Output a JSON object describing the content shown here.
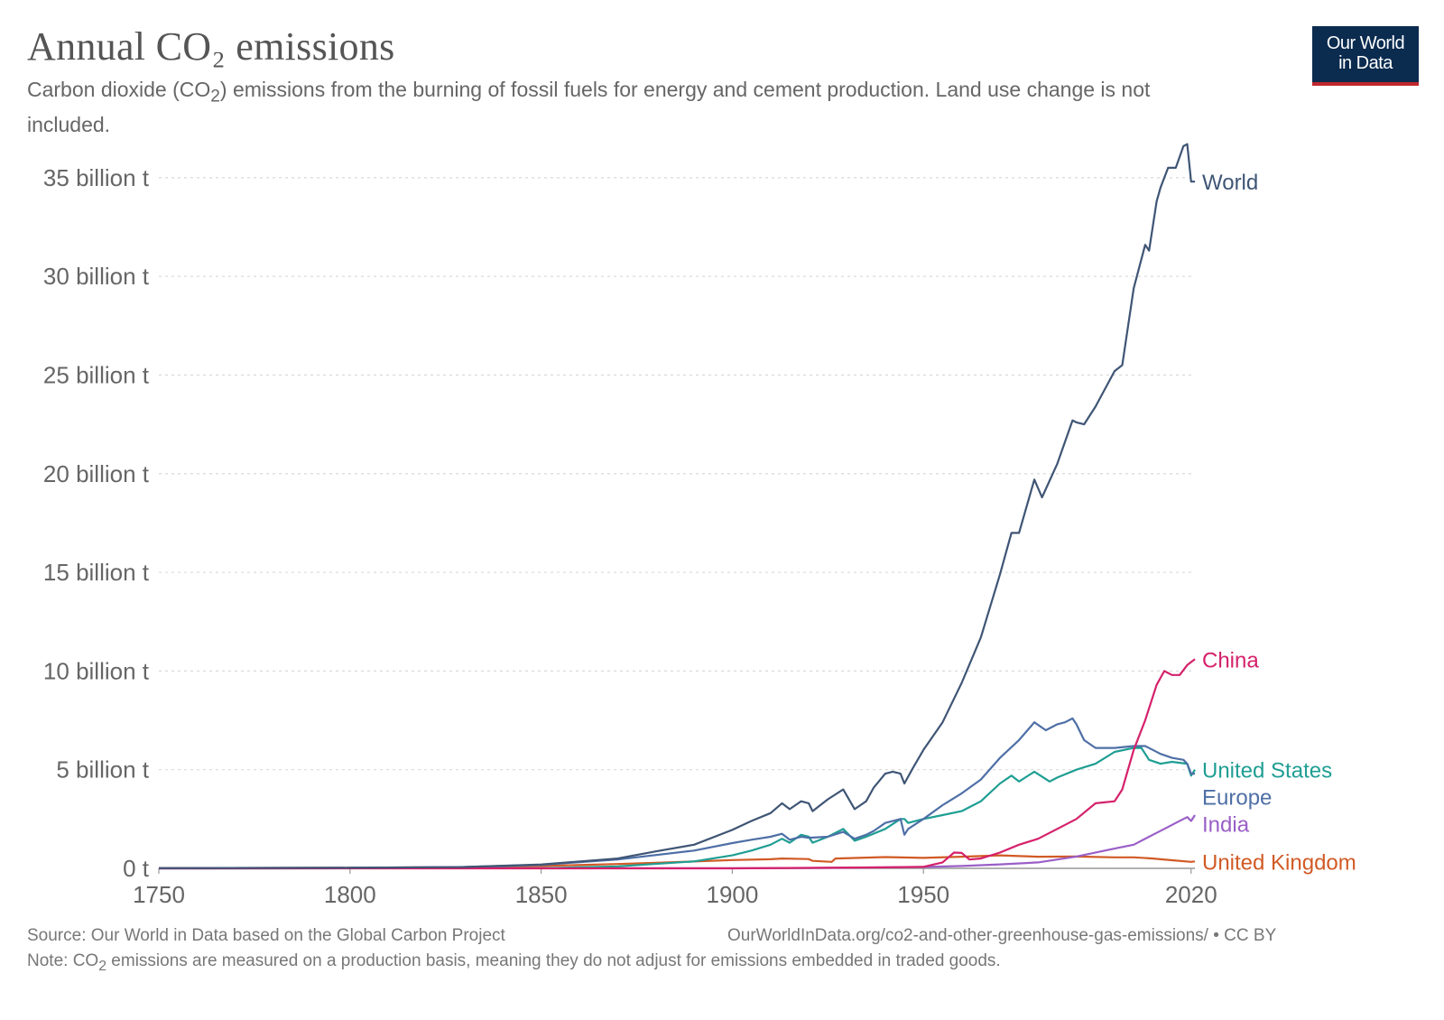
{
  "header": {
    "title": "Annual CO₂ emissions",
    "subtitle_before": "Carbon dioxide (CO",
    "subtitle_sub": "2",
    "subtitle_after": ") emissions from the burning of fossil fuels for energy and cement production. Land use change is not included.",
    "logo_line1": "Our World",
    "logo_line2": "in Data"
  },
  "footer": {
    "source": "Source: Our World in Data based on the Global Carbon Project",
    "url": "OurWorldInData.org/co2-and-other-greenhouse-gas-emissions/ • CC BY",
    "note_before": "Note: CO",
    "note_sub": "2",
    "note_after": " emissions are measured on a production basis, meaning they do not adjust for emissions embedded in traded goods."
  },
  "chart_data": {
    "type": "line",
    "xlim": [
      1750,
      2021
    ],
    "ylim": [
      0,
      36000000000
    ],
    "grid": true,
    "legend": "end-of-line labels",
    "x_ticks": [
      1750,
      1800,
      1850,
      1900,
      1950,
      2020
    ],
    "x_tick_labels": [
      "1750",
      "1800",
      "1850",
      "1900",
      "1950",
      "2020"
    ],
    "y_ticks": [
      0,
      5000000000,
      10000000000,
      15000000000,
      20000000000,
      25000000000,
      30000000000,
      35000000000
    ],
    "y_tick_labels": [
      "0 t",
      "5 billion t",
      "10 billion t",
      "15 billion t",
      "20 billion t",
      "25 billion t",
      "30 billion t",
      "35 billion t"
    ],
    "series": [
      {
        "name": "World",
        "color": "#3f5575",
        "x": [
          1750,
          1800,
          1830,
          1850,
          1870,
          1880,
          1890,
          1900,
          1905,
          1910,
          1913,
          1915,
          1918,
          1920,
          1921,
          1925,
          1929,
          1932,
          1935,
          1937,
          1940,
          1942,
          1944,
          1945,
          1947,
          1950,
          1955,
          1960,
          1965,
          1970,
          1973,
          1975,
          1979,
          1981,
          1985,
          1989,
          1990,
          1992,
          1995,
          2000,
          2002,
          2005,
          2008,
          2009,
          2011,
          2012,
          2014,
          2016,
          2018,
          2019,
          2020,
          2021
        ],
        "y": [
          9400000.0,
          28000000.0,
          70000000.0,
          197000000.0,
          500000000.0,
          860000000.0,
          1200000000.0,
          1950000000.0,
          2400000000.0,
          2800000000.0,
          3300000000.0,
          3000000000.0,
          3400000000.0,
          3300000000.0,
          2900000000.0,
          3500000000.0,
          4000000000.0,
          3000000000.0,
          3400000000.0,
          4100000000.0,
          4800000000.0,
          4900000000.0,
          4800000000.0,
          4300000000.0,
          5000000000.0,
          6000000000.0,
          7400000000.0,
          9400000000.0,
          11700000000.0,
          14900000000.0,
          17000000000.0,
          17000000000.0,
          19700000000.0,
          18800000000.0,
          20500000000.0,
          22700000000.0,
          22600000000.0,
          22500000000.0,
          23400000000.0,
          25200000000.0,
          25500000000.0,
          29400000000.0,
          31600000000.0,
          31300000000.0,
          33800000000.0,
          34500000000.0,
          35500000000.0,
          35500000000.0,
          36600000000.0,
          36700000000.0,
          34800000000.0,
          34800000000.0
        ]
      },
      {
        "name": "China",
        "color": "#d5216b",
        "x": [
          1750,
          1900,
          1940,
          1950,
          1955,
          1958,
          1960,
          1962,
          1965,
          1970,
          1975,
          1980,
          1985,
          1990,
          1995,
          2000,
          2002,
          2005,
          2008,
          2011,
          2013,
          2015,
          2017,
          2019,
          2021
        ],
        "y": [
          0,
          0,
          50000000.0,
          80000000.0,
          300000000.0,
          800000000.0,
          780000000.0,
          450000000.0,
          500000000.0,
          800000000.0,
          1200000000.0,
          1500000000.0,
          2000000000.0,
          2500000000.0,
          3300000000.0,
          3400000000.0,
          4000000000.0,
          6000000000.0,
          7500000000.0,
          9300000000.0,
          10000000000.0,
          9800000000.0,
          9800000000.0,
          10300000000.0,
          10600000000.0
        ]
      },
      {
        "name": "Europe",
        "color": "#4e6fa6",
        "x": [
          1750,
          1800,
          1830,
          1850,
          1870,
          1890,
          1900,
          1905,
          1910,
          1913,
          1915,
          1918,
          1920,
          1925,
          1929,
          1932,
          1935,
          1937,
          1940,
          1944,
          1945,
          1946,
          1950,
          1955,
          1960,
          1965,
          1970,
          1975,
          1979,
          1982,
          1985,
          1987,
          1989,
          1990,
          1992,
          1995,
          2000,
          2005,
          2008,
          2010,
          2012,
          2015,
          2018,
          2019,
          2020,
          2021
        ],
        "y": [
          9000000.0,
          28000000.0,
          70000000.0,
          180000000.0,
          450000000.0,
          900000000.0,
          1280000000.0,
          1450000000.0,
          1600000000.0,
          1750000000.0,
          1450000000.0,
          1600000000.0,
          1550000000.0,
          1600000000.0,
          1850000000.0,
          1500000000.0,
          1700000000.0,
          1900000000.0,
          2300000000.0,
          2500000000.0,
          1700000000.0,
          2000000000.0,
          2500000000.0,
          3200000000.0,
          3800000000.0,
          4500000000.0,
          5600000000.0,
          6500000000.0,
          7400000000.0,
          7000000000.0,
          7300000000.0,
          7400000000.0,
          7600000000.0,
          7300000000.0,
          6500000000.0,
          6100000000.0,
          6100000000.0,
          6200000000.0,
          6200000000.0,
          6000000000.0,
          5800000000.0,
          5600000000.0,
          5500000000.0,
          5300000000.0,
          4800000000.0,
          4800000000.0
        ]
      },
      {
        "name": "United States",
        "color": "#1f9e93",
        "x": [
          1750,
          1850,
          1870,
          1890,
          1900,
          1905,
          1910,
          1913,
          1915,
          1918,
          1920,
          1921,
          1925,
          1929,
          1932,
          1935,
          1940,
          1944,
          1945,
          1946,
          1950,
          1955,
          1960,
          1965,
          1970,
          1973,
          1975,
          1979,
          1983,
          1985,
          1990,
          1995,
          2000,
          2005,
          2007,
          2009,
          2012,
          2015,
          2019,
          2020,
          2021
        ],
        "y": [
          0,
          5000000.0,
          100000000.0,
          350000000.0,
          660000000.0,
          900000000.0,
          1200000000.0,
          1500000000.0,
          1300000000.0,
          1700000000.0,
          1600000000.0,
          1300000000.0,
          1600000000.0,
          2000000000.0,
          1400000000.0,
          1600000000.0,
          2000000000.0,
          2500000000.0,
          2500000000.0,
          2300000000.0,
          2500000000.0,
          2700000000.0,
          2900000000.0,
          3400000000.0,
          4300000000.0,
          4700000000.0,
          4400000000.0,
          4900000000.0,
          4400000000.0,
          4600000000.0,
          5000000000.0,
          5300000000.0,
          5900000000.0,
          6100000000.0,
          6100000000.0,
          5500000000.0,
          5300000000.0,
          5400000000.0,
          5300000000.0,
          4700000000.0,
          5000000000.0
        ]
      },
      {
        "name": "India",
        "color": "#9a5fc7",
        "x": [
          1750,
          1900,
          1920,
          1950,
          1960,
          1970,
          1980,
          1990,
          2000,
          2005,
          2010,
          2013,
          2016,
          2019,
          2020,
          2021
        ],
        "y": [
          0,
          10000000.0,
          20000000.0,
          70000000.0,
          120000000.0,
          200000000.0,
          300000000.0,
          600000000.0,
          1000000000.0,
          1200000000.0,
          1700000000.0,
          2000000000.0,
          2300000000.0,
          2600000000.0,
          2400000000.0,
          2700000000.0
        ]
      },
      {
        "name": "United Kingdom",
        "color": "#d15a25",
        "x": [
          1750,
          1800,
          1830,
          1850,
          1870,
          1880,
          1900,
          1910,
          1913,
          1920,
          1921,
          1926,
          1927,
          1940,
          1950,
          1960,
          1970,
          1975,
          1980,
          1990,
          2000,
          2005,
          2010,
          2015,
          2020,
          2021
        ],
        "y": [
          9000000.0,
          28000000.0,
          60000000.0,
          120000000.0,
          220000000.0,
          280000000.0,
          420000000.0,
          460000000.0,
          500000000.0,
          470000000.0,
          380000000.0,
          330000000.0,
          500000000.0,
          570000000.0,
          530000000.0,
          590000000.0,
          660000000.0,
          620000000.0,
          590000000.0,
          600000000.0,
          560000000.0,
          560000000.0,
          500000000.0,
          410000000.0,
          330000000.0,
          350000000.0
        ]
      }
    ]
  }
}
